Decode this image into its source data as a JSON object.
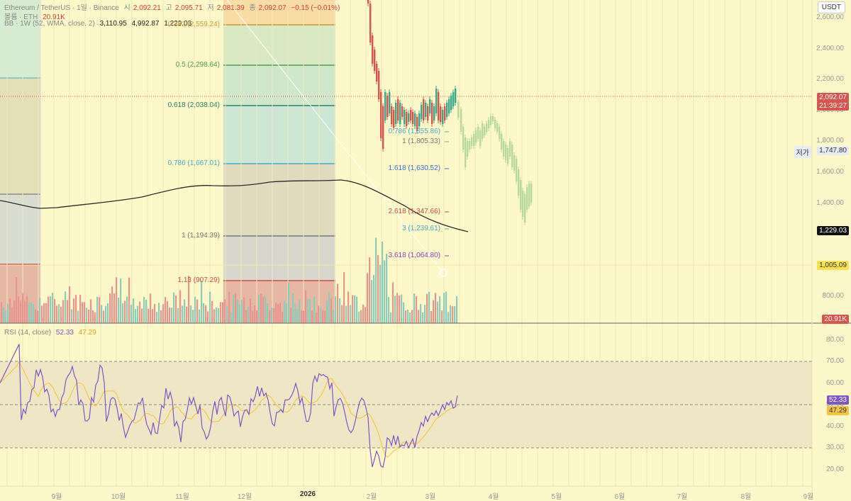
{
  "header": {
    "symbol": "Ethereum / TetherUS · 1일 · Binance",
    "o_label": "시",
    "o": "2,092.21",
    "h_label": "고",
    "h": "2,095.71",
    "l_label": "저",
    "l": "2,081.39",
    "c_label": "종",
    "c": "2,092.07",
    "change": "−0.15 (−0.01%)",
    "volume_label": "볼륨 · ETH",
    "volume": "20.91K",
    "bb_label": "BB · 1W (52, WMA, close, 2)",
    "bb_mid": "3,110.95",
    "bb_up": "4,992.87",
    "bb_low": "1,229.03",
    "rsi_label": "RSI (14, close)",
    "rsi_val": "52.33",
    "rsi_ma": "47.29"
  },
  "currency": "USDT",
  "price_axis": [
    "2,600.00",
    "2,400.00",
    "2,200.00",
    "2,000.00",
    "1,800.00",
    "1,600.00",
    "1,400.00",
    "800.00"
  ],
  "rsi_axis": [
    "80.00",
    "70.00",
    "60.00",
    "50.00",
    "40.00",
    "30.00",
    "20.00"
  ],
  "x_axis": [
    "9월",
    "10월",
    "11월",
    "12월",
    "2026",
    "2월",
    "3월",
    "4월",
    "5월",
    "6월",
    "7월",
    "8월",
    "9월"
  ],
  "tags": {
    "last_price": "2,092.07",
    "countdown": "21:39:27",
    "low_label": "저가",
    "low_price": "1,747.80",
    "bb_low": "1,229.03",
    "support": "1,005.09",
    "volume": "20.91K",
    "rsi": "52.33",
    "rsi_ma": "47.29"
  },
  "fib_left": [
    {
      "text": "0.382 (2,559.24)",
      "color": "#c99a3a"
    },
    {
      "text": "0.5 (2,298.64)",
      "color": "#4f9a4f"
    },
    {
      "text": "0.618 (2,038.04)",
      "color": "#2f7d6b"
    },
    {
      "text": "0.786 (1,667.01)",
      "color": "#4aa7c9"
    },
    {
      "text": "1 (1,194.39)",
      "color": "#777777"
    },
    {
      "text": "1.13 (907.29)",
      "color": "#c94a4a"
    }
  ],
  "fib_right": [
    {
      "text": "0.786 (1,855.86)",
      "color": "#4aa7c9"
    },
    {
      "text": "1 (1,805.33)",
      "color": "#777777"
    },
    {
      "text": "1.618 (1,630.52)",
      "color": "#3b6fd1"
    },
    {
      "text": "2.618 (1,347.66)",
      "color": "#c94a4a"
    },
    {
      "text": "3 (1,239.61)",
      "color": "#4aa7c9"
    },
    {
      "text": "3.618 (1,064.80)",
      "color": "#8a3fb0"
    }
  ],
  "colors": {
    "up": "#3aa88f",
    "down": "#d9534f",
    "bg": "#fdf8c9",
    "projection": "#b9d99a",
    "rsi": "#7e57c2",
    "rsi_ma": "#f5c542"
  }
}
